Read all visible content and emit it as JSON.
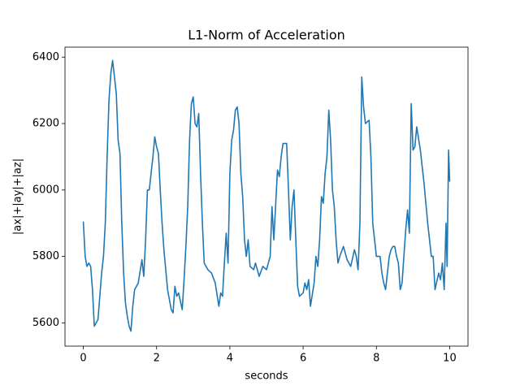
{
  "chart_data": {
    "type": "line",
    "title": "L1-Norm of Acceleration",
    "x_label": "seconds",
    "y_label": "|ax|+|ay|+|az|",
    "color": "#1f77b4",
    "xlim": [
      -0.5,
      10.5
    ],
    "ylim": [
      5530,
      6430
    ],
    "xticks": [
      0,
      2,
      4,
      6,
      8,
      10
    ],
    "yticks": [
      5600,
      5800,
      6000,
      6200,
      6400
    ],
    "x": [
      0,
      0.05,
      0.1,
      0.15,
      0.2,
      0.25,
      0.3,
      0.35,
      0.4,
      0.45,
      0.5,
      0.55,
      0.6,
      0.65,
      0.7,
      0.75,
      0.8,
      0.85,
      0.9,
      0.95,
      1.0,
      1.05,
      1.1,
      1.15,
      1.2,
      1.25,
      1.3,
      1.35,
      1.4,
      1.5,
      1.6,
      1.65,
      1.7,
      1.75,
      1.8,
      1.85,
      1.9,
      1.95,
      2.0,
      2.05,
      2.1,
      2.15,
      2.2,
      2.3,
      2.4,
      2.45,
      2.5,
      2.55,
      2.6,
      2.7,
      2.75,
      2.8,
      2.85,
      2.9,
      2.95,
      3.0,
      3.05,
      3.1,
      3.15,
      3.2,
      3.25,
      3.3,
      3.4,
      3.5,
      3.6,
      3.7,
      3.75,
      3.8,
      3.85,
      3.9,
      3.95,
      4.0,
      4.05,
      4.1,
      4.15,
      4.2,
      4.25,
      4.3,
      4.35,
      4.4,
      4.45,
      4.5,
      4.55,
      4.65,
      4.7,
      4.8,
      4.9,
      5.0,
      5.05,
      5.1,
      5.15,
      5.2,
      5.3,
      5.35,
      5.4,
      5.45,
      5.55,
      5.6,
      5.65,
      5.7,
      5.75,
      5.8,
      5.85,
      5.9,
      6.0,
      6.05,
      6.1,
      6.15,
      6.2,
      6.3,
      6.35,
      6.4,
      6.45,
      6.5,
      6.55,
      6.6,
      6.65,
      6.7,
      6.75,
      6.8,
      6.85,
      6.9,
      6.95,
      7.0,
      7.1,
      7.2,
      7.3,
      7.4,
      7.45,
      7.5,
      7.55,
      7.6,
      7.65,
      7.7,
      7.8,
      7.85,
      7.9,
      8.0,
      8.1,
      8.15,
      8.2,
      8.25,
      8.3,
      8.35,
      8.4,
      8.45,
      8.5,
      8.55,
      8.6,
      8.65,
      8.7,
      8.75,
      8.8,
      8.85,
      8.9,
      8.95,
      9.0,
      9.05,
      9.1,
      9.2,
      9.3,
      9.4,
      9.5,
      9.55,
      9.6,
      9.7,
      9.75,
      9.8,
      9.85,
      9.9,
      9.93,
      9.97,
      10.0
    ],
    "values": [
      5905,
      5800,
      5770,
      5780,
      5770,
      5700,
      5590,
      5600,
      5610,
      5680,
      5750,
      5800,
      5900,
      6100,
      6270,
      6350,
      6390,
      6340,
      6290,
      6150,
      6110,
      5900,
      5750,
      5660,
      5620,
      5590,
      5575,
      5650,
      5700,
      5720,
      5790,
      5740,
      5850,
      6000,
      6000,
      6050,
      6100,
      6160,
      6130,
      6110,
      6000,
      5900,
      5820,
      5700,
      5640,
      5630,
      5710,
      5680,
      5690,
      5640,
      5730,
      5830,
      5950,
      6150,
      6260,
      6280,
      6200,
      6190,
      6230,
      6050,
      5900,
      5780,
      5760,
      5750,
      5720,
      5650,
      5690,
      5680,
      5780,
      5870,
      5780,
      6050,
      6150,
      6180,
      6240,
      6250,
      6200,
      6050,
      5980,
      5850,
      5800,
      5850,
      5770,
      5760,
      5780,
      5740,
      5770,
      5760,
      5780,
      5800,
      5950,
      5850,
      6060,
      6040,
      6100,
      6140,
      6140,
      6000,
      5850,
      5950,
      6000,
      5850,
      5710,
      5680,
      5690,
      5720,
      5700,
      5730,
      5650,
      5720,
      5800,
      5770,
      5850,
      5980,
      5960,
      6050,
      6100,
      6240,
      6150,
      6000,
      5950,
      5850,
      5780,
      5800,
      5830,
      5790,
      5770,
      5820,
      5800,
      5760,
      5900,
      6340,
      6250,
      6200,
      6210,
      6100,
      5900,
      5800,
      5800,
      5750,
      5720,
      5700,
      5750,
      5800,
      5820,
      5830,
      5830,
      5800,
      5780,
      5700,
      5720,
      5800,
      5880,
      5940,
      5870,
      6260,
      6120,
      6130,
      6190,
      6120,
      6020,
      5900,
      5800,
      5800,
      5700,
      5750,
      5730,
      5780,
      5700,
      5900,
      5770,
      6120,
      6025
    ]
  }
}
